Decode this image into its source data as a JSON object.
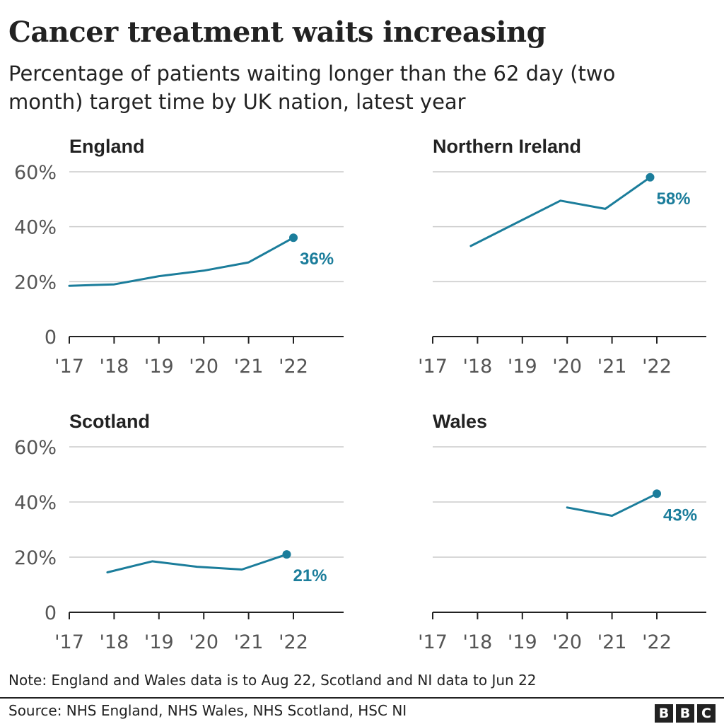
{
  "title": "Cancer treatment waits increasing",
  "subtitle": "Percentage of patients waiting longer than the 62 day (two month) target time by UK nation, latest year",
  "note": "Note: England and Wales data is to Aug 22, Scotland and NI data to Jun 22",
  "source": "Source: NHS England, NHS Wales, NHS Scotland, HSC NI",
  "logo": [
    "B",
    "B",
    "C"
  ],
  "colors": {
    "line": "#1b7d9b",
    "grid": "#cccccc",
    "axis": "#222222",
    "tick_text": "#555555"
  },
  "chart_data": [
    {
      "type": "line",
      "title": "England",
      "y_ticks": [
        "60%",
        "40%",
        "20%",
        "0"
      ],
      "x_ticks": [
        "'17",
        "'18",
        "'19",
        "'20",
        "'21",
        "'22"
      ],
      "ylim": [
        0,
        60
      ],
      "series": [
        {
          "x": [
            2017,
            2018,
            2019,
            2020,
            2021,
            2022
          ],
          "values": [
            18.5,
            19,
            22,
            24,
            27,
            36
          ]
        }
      ],
      "end_label": "36%"
    },
    {
      "type": "line",
      "title": "Northern Ireland",
      "y_ticks": [],
      "x_ticks": [
        "'17",
        "'18",
        "'19",
        "'20",
        "'21",
        "'22"
      ],
      "ylim": [
        0,
        60
      ],
      "series": [
        {
          "x": [
            2017.85,
            2019.85,
            2020.85,
            2021.85
          ],
          "values": [
            33,
            49.5,
            46.5,
            58
          ]
        }
      ],
      "end_label": "58%"
    },
    {
      "type": "line",
      "title": "Scotland",
      "y_ticks": [
        "60%",
        "40%",
        "20%",
        "0"
      ],
      "x_ticks": [
        "'17",
        "'18",
        "'19",
        "'20",
        "'21",
        "'22"
      ],
      "ylim": [
        0,
        60
      ],
      "series": [
        {
          "x": [
            2017.85,
            2018.85,
            2019.85,
            2020.85,
            2021.85
          ],
          "values": [
            14.5,
            18.5,
            16.5,
            15.5,
            21
          ]
        }
      ],
      "end_label": "21%"
    },
    {
      "type": "line",
      "title": "Wales",
      "y_ticks": [],
      "x_ticks": [
        "'17",
        "'18",
        "'19",
        "'20",
        "'21",
        "'22"
      ],
      "ylim": [
        0,
        60
      ],
      "series": [
        {
          "x": [
            2020,
            2021,
            2022
          ],
          "values": [
            38,
            35,
            43
          ]
        }
      ],
      "end_label": "43%"
    }
  ]
}
